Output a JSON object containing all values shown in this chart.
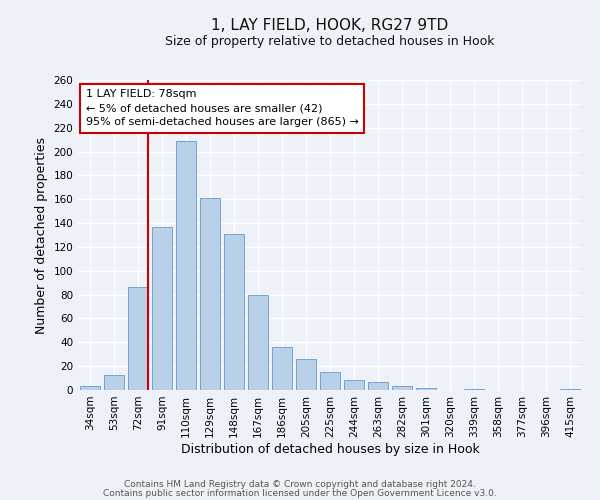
{
  "title": "1, LAY FIELD, HOOK, RG27 9TD",
  "subtitle": "Size of property relative to detached houses in Hook",
  "xlabel": "Distribution of detached houses by size in Hook",
  "ylabel": "Number of detached properties",
  "bar_labels": [
    "34sqm",
    "53sqm",
    "72sqm",
    "91sqm",
    "110sqm",
    "129sqm",
    "148sqm",
    "167sqm",
    "186sqm",
    "205sqm",
    "225sqm",
    "244sqm",
    "263sqm",
    "282sqm",
    "301sqm",
    "320sqm",
    "339sqm",
    "358sqm",
    "377sqm",
    "396sqm",
    "415sqm"
  ],
  "bar_values": [
    3,
    13,
    86,
    137,
    209,
    161,
    131,
    80,
    36,
    26,
    15,
    8,
    7,
    3,
    2,
    0,
    1,
    0,
    0,
    0,
    1
  ],
  "bar_color": "#b8d0e8",
  "bar_edge_color": "#6699cc",
  "vline_index": 2,
  "vline_color": "#cc0000",
  "ylim": [
    0,
    260
  ],
  "yticks": [
    0,
    20,
    40,
    60,
    80,
    100,
    120,
    140,
    160,
    180,
    200,
    220,
    240,
    260
  ],
  "annotation_title": "1 LAY FIELD: 78sqm",
  "annotation_line1": "← 5% of detached houses are smaller (42)",
  "annotation_line2": "95% of semi-detached houses are larger (865) →",
  "annotation_box_color": "#ffffff",
  "annotation_box_edge": "#cc0000",
  "footer1": "Contains HM Land Registry data © Crown copyright and database right 2024.",
  "footer2": "Contains public sector information licensed under the Open Government Licence v3.0.",
  "bg_color": "#eef2f8",
  "grid_color": "#ffffff",
  "title_fontsize": 11,
  "subtitle_fontsize": 9,
  "axis_label_fontsize": 9,
  "tick_fontsize": 7.5,
  "annotation_fontsize": 8,
  "footer_fontsize": 6.5
}
